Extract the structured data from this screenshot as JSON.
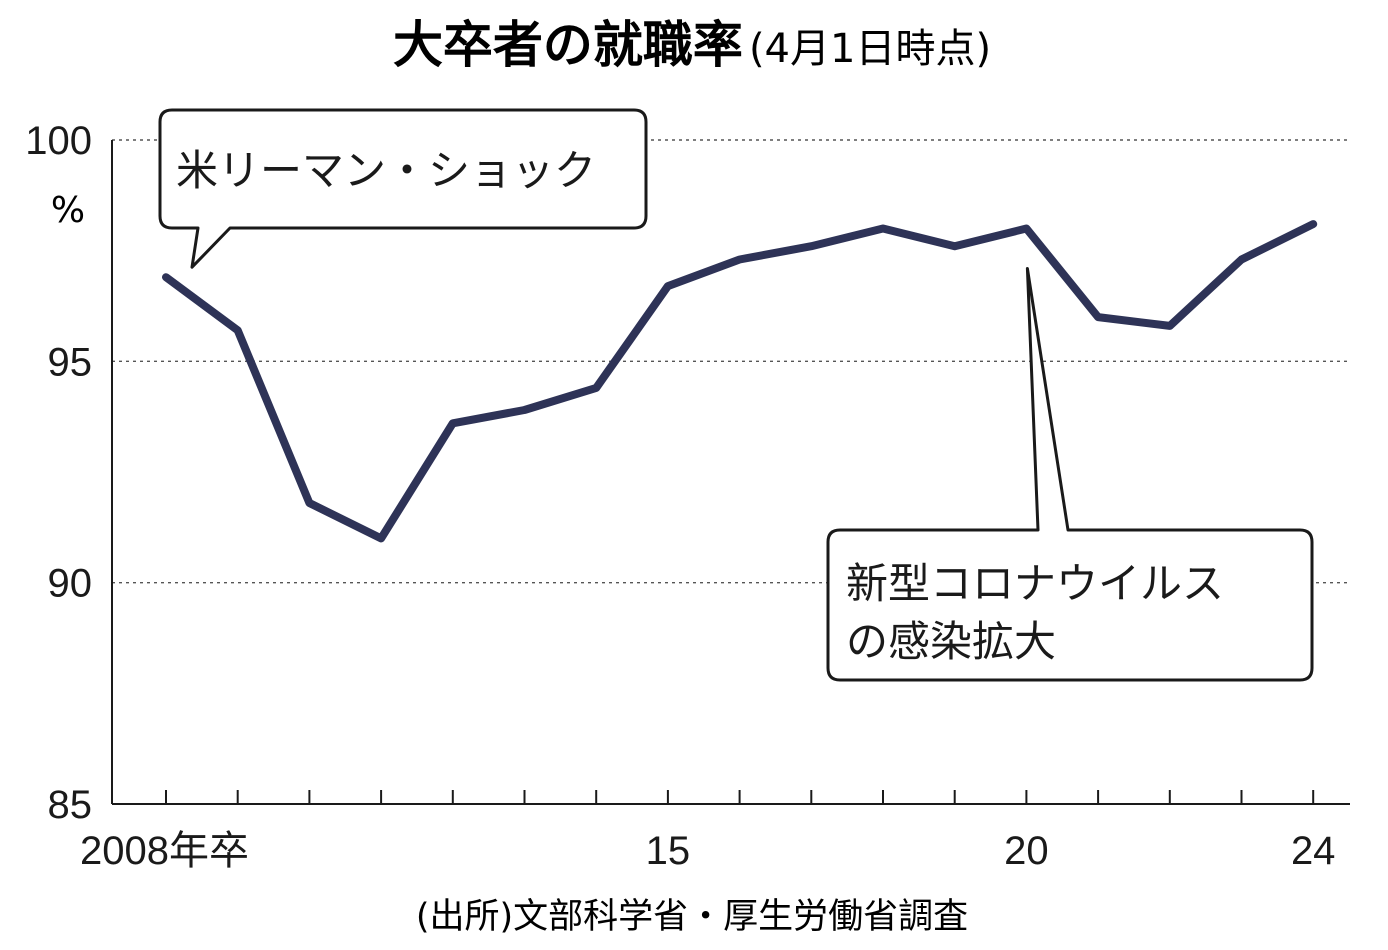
{
  "chart_data": {
    "type": "line",
    "title": "大卒者の就職率",
    "subtitle": "(4月1日時点)",
    "ylabel_unit": "%",
    "source": "(出所)文部科学省・厚生労働省調査",
    "ylim": [
      85,
      100
    ],
    "yticks": [
      "100",
      "95",
      "90",
      "85"
    ],
    "ytick_values": [
      100,
      95,
      90,
      85
    ],
    "xlim": [
      2008,
      2024
    ],
    "xtick_labels": [
      "2008年卒",
      "15",
      "20",
      "24"
    ],
    "xtick_values": [
      2008,
      2015,
      2020,
      2024
    ],
    "grid": "horizontal-dotted",
    "line_color": "#2e3357",
    "x": [
      2008,
      2009,
      2010,
      2011,
      2012,
      2013,
      2014,
      2015,
      2016,
      2017,
      2018,
      2019,
      2020,
      2021,
      2022,
      2023,
      2024
    ],
    "series": [
      {
        "values": [
          96.9,
          95.7,
          91.8,
          91.0,
          93.6,
          93.9,
          94.4,
          96.7,
          97.3,
          97.6,
          98.0,
          97.6,
          98.0,
          96.0,
          95.8,
          97.3,
          98.1
        ]
      }
    ],
    "annotations": [
      {
        "lines": [
          "米リーマン・ショック"
        ],
        "x": 2008
      },
      {
        "lines": [
          "新型コロナウイルス",
          "の感染拡大"
        ],
        "x": 2020
      }
    ]
  }
}
